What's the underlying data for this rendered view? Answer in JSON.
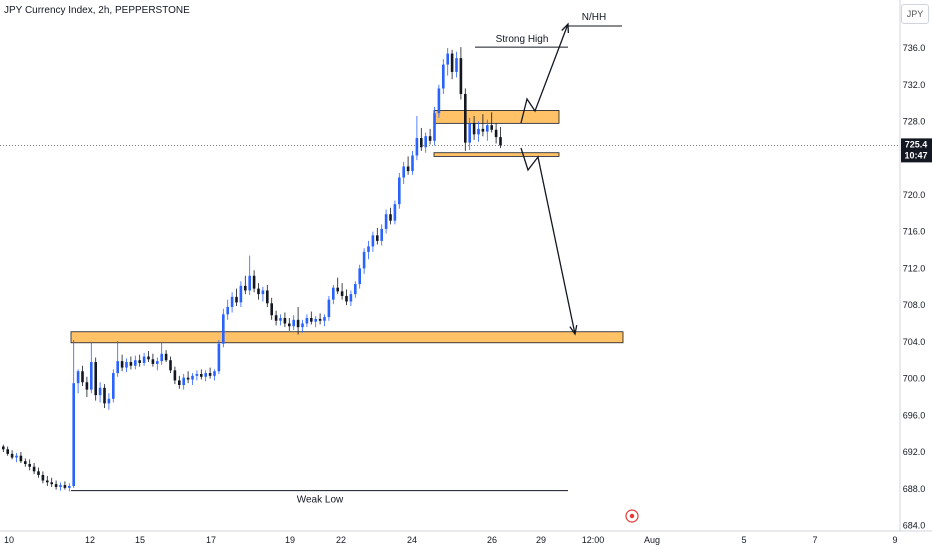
{
  "header": {
    "title": "JPY Currency Index, 2h, PEPPERSTONE",
    "currency": "JPY"
  },
  "chart_data": {
    "type": "candlestick",
    "y_ticks": [
      684.0,
      688.0,
      692.0,
      696.0,
      700.0,
      704.0,
      708.0,
      712.0,
      716.0,
      720.0,
      724.0,
      728.0,
      732.0,
      736.0
    ],
    "ylim": [
      683.4,
      739.6
    ],
    "x_tick_labels": [
      "10",
      "12",
      "15",
      "17",
      "19",
      "22",
      "24",
      "26",
      "29",
      "12:00",
      "Aug",
      "5",
      "7",
      "9"
    ],
    "last_price": "725.4",
    "countdown": "10:47",
    "zones": [
      {
        "id": "upper-supply-zone",
        "low": 727.8,
        "high": 729.2,
        "color": "#ffc266"
      },
      {
        "id": "lower-demand-line",
        "low": 724.2,
        "high": 724.6,
        "color": "#ffc266"
      },
      {
        "id": "demand-zone",
        "low": 703.9,
        "high": 705.1,
        "color": "#ffc266"
      }
    ],
    "annotations": [
      {
        "label": "N/HH",
        "price": 738.4
      },
      {
        "label": "Strong High",
        "price": 736.1
      },
      {
        "label": "Weak Low",
        "price": 687.8
      }
    ],
    "colors": {
      "up": "#2962ff",
      "down": "#131722",
      "zone_border": "#131722"
    },
    "candles": [
      [
        692.6,
        692.8,
        692.0,
        692.3
      ],
      [
        692.3,
        692.6,
        691.6,
        691.8
      ],
      [
        691.8,
        692.2,
        691.2,
        691.4
      ],
      [
        691.4,
        691.9,
        690.9,
        691.6
      ],
      [
        691.6,
        692.0,
        690.8,
        691.0
      ],
      [
        691.0,
        691.3,
        690.4,
        690.7
      ],
      [
        690.7,
        691.2,
        690.0,
        690.4
      ],
      [
        690.4,
        690.8,
        689.6,
        689.9
      ],
      [
        689.9,
        690.3,
        689.2,
        689.5
      ],
      [
        689.5,
        689.9,
        688.6,
        688.9
      ],
      [
        688.9,
        689.4,
        688.3,
        688.7
      ],
      [
        688.7,
        689.2,
        688.2,
        688.5
      ],
      [
        688.5,
        688.9,
        687.9,
        688.2
      ],
      [
        688.2,
        688.7,
        687.8,
        688.4
      ],
      [
        688.4,
        688.8,
        687.9,
        688.1
      ],
      [
        688.1,
        688.6,
        687.7,
        688.3
      ],
      [
        688.3,
        704.2,
        688.1,
        699.5
      ],
      [
        699.5,
        701.0,
        698.4,
        700.8
      ],
      [
        700.8,
        701.4,
        699.2,
        699.6
      ],
      [
        699.6,
        700.2,
        698.0,
        698.8
      ],
      [
        698.8,
        704.0,
        698.4,
        701.8
      ],
      [
        701.8,
        702.3,
        697.6,
        698.2
      ],
      [
        698.2,
        699.6,
        697.4,
        699.0
      ],
      [
        699.0,
        699.4,
        696.8,
        697.3
      ],
      [
        697.3,
        698.4,
        696.6,
        697.8
      ],
      [
        697.8,
        701.0,
        697.4,
        700.6
      ],
      [
        700.6,
        704.1,
        700.2,
        701.9
      ],
      [
        701.9,
        702.6,
        700.8,
        701.2
      ],
      [
        701.2,
        702.2,
        700.7,
        701.8
      ],
      [
        701.8,
        702.4,
        701.0,
        701.4
      ],
      [
        701.4,
        702.5,
        701.0,
        702.0
      ],
      [
        702.0,
        702.6,
        701.3,
        701.7
      ],
      [
        701.7,
        702.8,
        701.4,
        702.4
      ],
      [
        702.4,
        703.0,
        701.8,
        702.1
      ],
      [
        702.1,
        702.7,
        701.3,
        701.6
      ],
      [
        701.6,
        702.3,
        700.9,
        701.9
      ],
      [
        701.9,
        704.0,
        701.5,
        702.7
      ],
      [
        702.7,
        703.1,
        701.8,
        702.0
      ],
      [
        702.0,
        702.4,
        700.6,
        700.9
      ],
      [
        700.9,
        701.3,
        699.4,
        699.8
      ],
      [
        699.8,
        700.3,
        698.9,
        699.3
      ],
      [
        699.3,
        700.5,
        698.8,
        700.1
      ],
      [
        700.1,
        700.8,
        699.5,
        699.9
      ],
      [
        699.9,
        700.6,
        699.3,
        700.3
      ],
      [
        700.3,
        700.9,
        699.8,
        700.5
      ],
      [
        700.5,
        701.0,
        699.9,
        700.2
      ],
      [
        700.2,
        700.9,
        699.7,
        700.6
      ],
      [
        700.6,
        701.2,
        700.0,
        700.3
      ],
      [
        700.3,
        701.0,
        699.8,
        700.8
      ],
      [
        700.8,
        704.2,
        700.5,
        703.8
      ],
      [
        703.8,
        707.6,
        703.4,
        707.0
      ],
      [
        707.0,
        708.6,
        706.4,
        707.8
      ],
      [
        707.8,
        709.4,
        707.2,
        708.9
      ],
      [
        708.9,
        709.8,
        707.9,
        708.3
      ],
      [
        708.3,
        710.6,
        707.8,
        710.1
      ],
      [
        710.1,
        711.2,
        709.2,
        709.6
      ],
      [
        709.6,
        713.4,
        709.1,
        711.2
      ],
      [
        711.2,
        711.8,
        709.4,
        709.8
      ],
      [
        709.8,
        710.4,
        708.6,
        709.2
      ],
      [
        709.2,
        710.0,
        708.4,
        709.6
      ],
      [
        709.6,
        710.2,
        707.8,
        708.2
      ],
      [
        708.2,
        708.8,
        706.4,
        706.9
      ],
      [
        706.9,
        707.4,
        705.8,
        706.3
      ],
      [
        706.3,
        707.0,
        705.8,
        706.6
      ],
      [
        706.6,
        707.2,
        705.6,
        706.0
      ],
      [
        706.0,
        706.6,
        705.2,
        705.7
      ],
      [
        705.7,
        706.9,
        705.3,
        706.4
      ],
      [
        706.4,
        707.8,
        704.8,
        705.6
      ],
      [
        705.6,
        706.4,
        705.0,
        706.0
      ],
      [
        706.0,
        707.0,
        705.6,
        706.6
      ],
      [
        706.6,
        707.3,
        705.9,
        706.2
      ],
      [
        706.2,
        706.8,
        705.6,
        706.5
      ],
      [
        706.5,
        707.1,
        705.9,
        706.3
      ],
      [
        706.3,
        707.0,
        705.7,
        706.7
      ],
      [
        706.7,
        709.0,
        706.3,
        708.6
      ],
      [
        708.6,
        710.2,
        708.1,
        709.9
      ],
      [
        709.9,
        711.0,
        709.2,
        709.5
      ],
      [
        709.5,
        710.4,
        708.6,
        709.0
      ],
      [
        709.0,
        709.7,
        708.0,
        708.4
      ],
      [
        708.4,
        709.6,
        707.9,
        709.2
      ],
      [
        709.2,
        710.6,
        708.8,
        710.3
      ],
      [
        710.3,
        712.4,
        709.8,
        712.0
      ],
      [
        712.0,
        714.2,
        711.4,
        713.8
      ],
      [
        713.8,
        715.0,
        713.0,
        714.4
      ],
      [
        714.4,
        716.0,
        713.8,
        715.6
      ],
      [
        715.6,
        716.4,
        714.6,
        715.0
      ],
      [
        715.0,
        716.8,
        714.5,
        716.3
      ],
      [
        716.3,
        718.4,
        715.8,
        717.9
      ],
      [
        717.9,
        718.6,
        716.8,
        717.2
      ],
      [
        717.2,
        719.4,
        716.8,
        719.0
      ],
      [
        719.0,
        722.4,
        718.5,
        721.9
      ],
      [
        721.9,
        723.6,
        721.2,
        723.1
      ],
      [
        723.1,
        724.2,
        722.2,
        722.6
      ],
      [
        722.6,
        724.8,
        722.2,
        724.3
      ],
      [
        724.3,
        728.6,
        723.8,
        726.2
      ],
      [
        726.2,
        727.3,
        724.8,
        725.2
      ],
      [
        725.2,
        726.8,
        724.6,
        726.4
      ],
      [
        726.4,
        727.2,
        725.5,
        725.9
      ],
      [
        725.9,
        729.6,
        725.4,
        728.9
      ],
      [
        728.9,
        732.0,
        728.4,
        731.6
      ],
      [
        731.6,
        734.8,
        731.0,
        734.2
      ],
      [
        734.2,
        736.0,
        733.0,
        735.4
      ],
      [
        735.4,
        735.8,
        732.6,
        733.4
      ],
      [
        733.4,
        735.6,
        732.8,
        734.9
      ],
      [
        734.9,
        736.1,
        730.4,
        731.0
      ],
      [
        731.0,
        731.6,
        724.8,
        725.7
      ],
      [
        725.7,
        728.4,
        724.9,
        727.8
      ],
      [
        727.8,
        728.6,
        726.0,
        726.6
      ],
      [
        726.6,
        728.0,
        725.8,
        727.2
      ],
      [
        727.2,
        728.8,
        726.4,
        726.9
      ],
      [
        726.9,
        728.2,
        725.9,
        727.6
      ],
      [
        727.6,
        729.0,
        726.8,
        727.1
      ],
      [
        727.1,
        727.8,
        725.6,
        726.3
      ],
      [
        726.3,
        727.4,
        725.1,
        725.4
      ]
    ]
  }
}
